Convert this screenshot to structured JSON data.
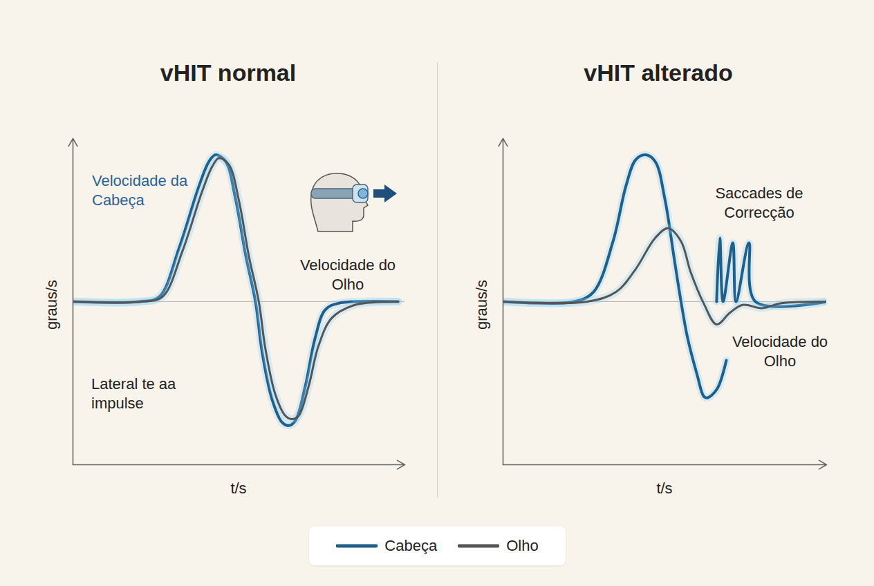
{
  "chart_data": [
    {
      "type": "line",
      "title": "vHIT normal",
      "x_label": "t/s",
      "y_label": "graus/s",
      "xlim": [
        0,
        1
      ],
      "ylim": [
        -100,
        100
      ],
      "xticks": [],
      "yticks": [
        0
      ],
      "grid": true,
      "tick_labels": false,
      "legend": "bottom",
      "series": [
        {
          "name": "Cabeça",
          "color": "#1f5f8b",
          "x": [
            0,
            0.2,
            0.26,
            0.32,
            0.38,
            0.41,
            0.43,
            0.46,
            0.49,
            0.52,
            0.55,
            0.57,
            0.6,
            0.63,
            0.65,
            0.67,
            0.7,
            0.73,
            0.76,
            0.8,
            0.98
          ],
          "values": [
            0,
            0,
            3,
            33,
            71,
            86,
            90,
            86,
            63,
            29,
            0,
            -31,
            -60,
            -74,
            -76,
            -73,
            -52,
            -22,
            -5,
            -1,
            0
          ]
        },
        {
          "name": "Olho",
          "color": "#555555",
          "x": [
            0,
            0.21,
            0.27,
            0.33,
            0.39,
            0.42,
            0.44,
            0.47,
            0.5,
            0.53,
            0.56,
            0.58,
            0.61,
            0.64,
            0.66,
            0.68,
            0.71,
            0.74,
            0.78,
            0.85,
            0.98
          ],
          "values": [
            0,
            0,
            3,
            31,
            68,
            83,
            88,
            84,
            62,
            28,
            0,
            -29,
            -57,
            -70,
            -72,
            -70,
            -52,
            -27,
            -10,
            -2,
            0
          ]
        }
      ],
      "annotations": [
        {
          "text": "Velocidade da Cabeça",
          "color": "#2a6496"
        },
        {
          "text": "Velocidade do Olho",
          "color": "#222222"
        },
        {
          "text": "Lateral te aa impulse",
          "color": "#222222"
        }
      ]
    },
    {
      "type": "line",
      "title": "vHIT alterado",
      "x_label": "t/s",
      "y_label": "graus/s",
      "xlim": [
        0,
        1
      ],
      "ylim": [
        -100,
        100
      ],
      "xticks": [],
      "yticks": [
        0
      ],
      "grid": true,
      "tick_labels": false,
      "legend": "bottom",
      "series": [
        {
          "name": "Cabeça",
          "color": "#1f5f8b",
          "x": [
            0,
            0.22,
            0.28,
            0.34,
            0.38,
            0.41,
            0.44,
            0.47,
            0.5,
            0.53,
            0.55,
            0.57,
            0.6,
            0.62,
            0.63,
            0.66,
            0.69,
            0.69,
            0.66,
            0.67,
            0.68,
            0.71,
            0.72,
            0.76,
            0.78,
            1
          ],
          "values": [
            0,
            0,
            6,
            37,
            71,
            87,
            90,
            86,
            63,
            25,
            0,
            -22,
            -45,
            -58,
            -59,
            -54,
            -36,
            null,
            0,
            39,
            0,
            36,
            0,
            36,
            0,
            0
          ]
        },
        {
          "name": "Olho",
          "color": "#555555",
          "x": [
            0,
            0.26,
            0.35,
            0.41,
            0.47,
            0.51,
            0.55,
            0.58,
            0.62,
            0.66,
            0.7,
            0.74,
            0.8,
            0.86,
            1
          ],
          "values": [
            0,
            0,
            6,
            20,
            39,
            45,
            37,
            18,
            -1,
            -14,
            -7,
            -2,
            -4,
            -1,
            0
          ]
        }
      ],
      "annotations": [
        {
          "text": "Saccades de Correcção",
          "color": "#222222"
        },
        {
          "text": "Velocidade do Olho",
          "color": "#222222"
        }
      ]
    }
  ]
}
